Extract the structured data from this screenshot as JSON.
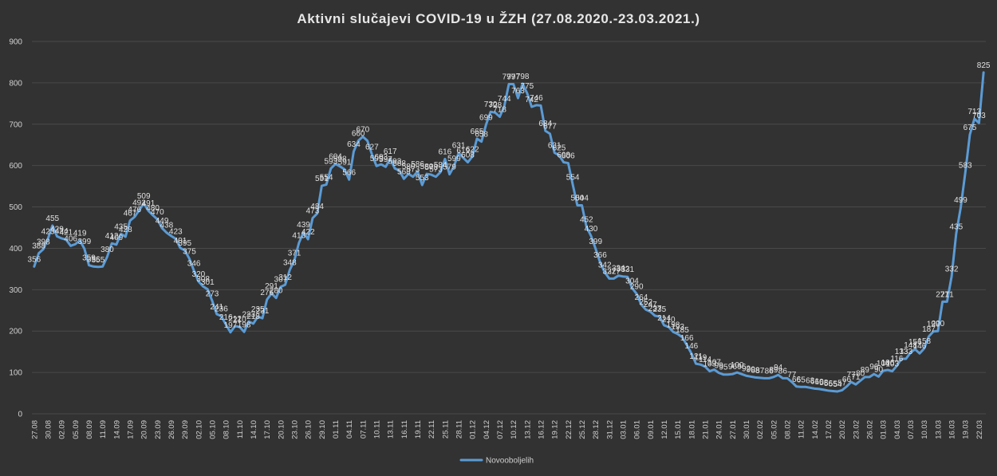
{
  "chart_data": {
    "type": "line",
    "title": "Aktivni slučajevi COVID-19 u ŽZH (27.08.2020.-23.03.2021.)",
    "xlabel": "",
    "ylabel": "",
    "ylim": [
      0,
      900
    ],
    "yticks": [
      0,
      100,
      200,
      300,
      400,
      500,
      600,
      700,
      800,
      900
    ],
    "grid": true,
    "legend_position": "bottom",
    "line_color": "#5b9bd5",
    "x_tick_labels": [
      "27.08",
      "30.08",
      "02.09",
      "05.09",
      "08.09",
      "11.09",
      "14.09",
      "17.09",
      "20.09",
      "23.09",
      "26.09",
      "29.09",
      "02.10",
      "05.10",
      "08.10",
      "11.10",
      "14.10",
      "17.10",
      "20.10",
      "23.10",
      "26.10",
      "29.10",
      "01.11",
      "04.11",
      "07.11",
      "10.11",
      "13.11",
      "16.11",
      "19.11",
      "22.11",
      "25.11",
      "28.11",
      "01.12",
      "04.12",
      "07.12",
      "10.12",
      "13.12",
      "16.12",
      "19.12",
      "22.12",
      "25.12",
      "28.12",
      "31.12",
      "03.01",
      "06.01",
      "09.01",
      "12.01",
      "15.01",
      "18.01",
      "21.01",
      "24.01",
      "27.01",
      "30.01",
      "02.02",
      "05.02",
      "08.02",
      "11.02",
      "14.02",
      "17.02",
      "20.02",
      "23.02",
      "26.02",
      "01.03",
      "04.03",
      "07.03",
      "10.03",
      "13.03",
      "16.03",
      "19.03",
      "22.03"
    ],
    "series": [
      {
        "name": "Novooboljelih",
        "values": [
          356,
          388,
          398,
          423,
          455,
          429,
          424,
          421,
          406,
          410,
          419,
          399,
          359,
          356,
          355,
          356,
          380,
          412,
          409,
          435,
          428,
          467,
          476,
          492,
          509,
          491,
          480,
          470,
          449,
          438,
          430,
          423,
          401,
          395,
          375,
          346,
          320,
          308,
          301,
          273,
          241,
          236,
          216,
          197,
          212,
          210,
          198,
          223,
          218,
          235,
          231,
          276,
          291,
          280,
          307,
          312,
          348,
          371,
          413,
          439,
          422,
          473,
          484,
          551,
          554,
          593,
          604,
          598,
          591,
          566,
          634,
          660,
          670,
          660,
          627,
          599,
          603,
          597,
          617,
          593,
          588,
          568,
          580,
          573,
          586,
          553,
          580,
          578,
          573,
          584,
          616,
          579,
          599,
          631,
          619,
          608,
          622,
          665,
          658,
          699,
          730,
          728,
          718,
          744,
          797,
          797,
          763,
          798,
          775,
          742,
          746,
          745,
          684,
          677,
          631,
          625,
          608,
          606,
          554,
          504,
          504,
          452,
          430,
          399,
          366,
          342,
          327,
          327,
          334,
          332,
          331,
          304,
          290,
          264,
          252,
          247,
          237,
          235,
          214,
          210,
          198,
          193,
          185,
          166,
          146,
          121,
          119,
          114,
          103,
          107,
          99,
          95,
          95,
          96,
          100,
          96,
          92,
          90,
          88,
          87,
          86,
          86,
          89,
          94,
          86,
          86,
          77,
          66,
          65,
          65,
          63,
          61,
          60,
          58,
          56,
          55,
          54,
          57,
          66,
          77,
          71,
          80,
          89,
          89,
          96,
          90,
          104,
          106,
          103,
          116,
          133,
          133,
          148,
          156,
          146,
          158,
          187,
          199,
          200,
          271,
          271,
          332,
          435,
          499,
          583,
          675,
          713,
          703,
          825
        ]
      }
    ],
    "labeled_points": [
      {
        "i": 0,
        "v": 356
      },
      {
        "i": 1,
        "v": 388
      },
      {
        "i": 2,
        "v": 398
      },
      {
        "i": 3,
        "v": 423
      },
      {
        "i": 4,
        "v": 455
      },
      {
        "i": 5,
        "v": 429
      },
      {
        "i": 6,
        "v": 424
      },
      {
        "i": 7,
        "v": 421
      },
      {
        "i": 8,
        "v": 406
      },
      {
        "i": 10,
        "v": 419
      },
      {
        "i": 11,
        "v": 399
      },
      {
        "i": 12,
        "v": 359
      },
      {
        "i": 13,
        "v": 356
      },
      {
        "i": 14,
        "v": 355
      },
      {
        "i": 16,
        "v": 380
      },
      {
        "i": 17,
        "v": 412
      },
      {
        "i": 18,
        "v": 409
      },
      {
        "i": 19,
        "v": 435
      },
      {
        "i": 20,
        "v": 428
      },
      {
        "i": 21,
        "v": 467
      },
      {
        "i": 22,
        "v": 476
      },
      {
        "i": 23,
        "v": 492
      },
      {
        "i": 24,
        "v": 509
      },
      {
        "i": 25,
        "v": 491
      },
      {
        "i": 26,
        "v": 480
      },
      {
        "i": 27,
        "v": 470
      },
      {
        "i": 28,
        "v": 449
      },
      {
        "i": 29,
        "v": 438
      },
      {
        "i": 31,
        "v": 423
      },
      {
        "i": 32,
        "v": 401
      },
      {
        "i": 33,
        "v": 395
      },
      {
        "i": 34,
        "v": 375
      },
      {
        "i": 35,
        "v": 346
      },
      {
        "i": 36,
        "v": 320
      },
      {
        "i": 37,
        "v": 308
      },
      {
        "i": 38,
        "v": 301
      },
      {
        "i": 39,
        "v": 273
      },
      {
        "i": 40,
        "v": 241
      },
      {
        "i": 41,
        "v": 236
      },
      {
        "i": 42,
        "v": 216
      },
      {
        "i": 43,
        "v": 197
      },
      {
        "i": 44,
        "v": 212
      },
      {
        "i": 45,
        "v": 210
      },
      {
        "i": 46,
        "v": 198
      },
      {
        "i": 47,
        "v": 223
      },
      {
        "i": 48,
        "v": 218
      },
      {
        "i": 49,
        "v": 235
      },
      {
        "i": 50,
        "v": 231
      },
      {
        "i": 51,
        "v": 276
      },
      {
        "i": 52,
        "v": 291
      },
      {
        "i": 53,
        "v": 280
      },
      {
        "i": 54,
        "v": 307
      },
      {
        "i": 55,
        "v": 312
      },
      {
        "i": 56,
        "v": 348
      },
      {
        "i": 57,
        "v": 371
      },
      {
        "i": 58,
        "v": 413
      },
      {
        "i": 59,
        "v": 439
      },
      {
        "i": 60,
        "v": 422
      },
      {
        "i": 61,
        "v": 473
      },
      {
        "i": 62,
        "v": 484
      },
      {
        "i": 63,
        "v": 551
      },
      {
        "i": 64,
        "v": 554
      },
      {
        "i": 65,
        "v": 593
      },
      {
        "i": 66,
        "v": 604
      },
      {
        "i": 67,
        "v": 598
      },
      {
        "i": 68,
        "v": 591
      },
      {
        "i": 69,
        "v": 566
      },
      {
        "i": 70,
        "v": 634
      },
      {
        "i": 71,
        "v": 660
      },
      {
        "i": 72,
        "v": 670
      },
      {
        "i": 74,
        "v": 627
      },
      {
        "i": 75,
        "v": 599
      },
      {
        "i": 76,
        "v": 603
      },
      {
        "i": 77,
        "v": 597
      },
      {
        "i": 78,
        "v": 617
      },
      {
        "i": 79,
        "v": 593
      },
      {
        "i": 80,
        "v": 588
      },
      {
        "i": 81,
        "v": 568
      },
      {
        "i": 82,
        "v": 580
      },
      {
        "i": 83,
        "v": 573
      },
      {
        "i": 84,
        "v": 586
      },
      {
        "i": 85,
        "v": 553
      },
      {
        "i": 86,
        "v": 580
      },
      {
        "i": 87,
        "v": 578
      },
      {
        "i": 88,
        "v": 573
      },
      {
        "i": 89,
        "v": 584
      },
      {
        "i": 90,
        "v": 616
      },
      {
        "i": 91,
        "v": 579
      },
      {
        "i": 92,
        "v": 599
      },
      {
        "i": 93,
        "v": 631
      },
      {
        "i": 94,
        "v": 619
      },
      {
        "i": 95,
        "v": 608
      },
      {
        "i": 96,
        "v": 622
      },
      {
        "i": 97,
        "v": 665
      },
      {
        "i": 98,
        "v": 658
      },
      {
        "i": 99,
        "v": 699
      },
      {
        "i": 100,
        "v": 730
      },
      {
        "i": 101,
        "v": 728
      },
      {
        "i": 102,
        "v": 718
      },
      {
        "i": 103,
        "v": 744
      },
      {
        "i": 104,
        "v": 797
      },
      {
        "i": 105,
        "v": 797
      },
      {
        "i": 106,
        "v": 763
      },
      {
        "i": 107,
        "v": 798
      },
      {
        "i": 108,
        "v": 775
      },
      {
        "i": 109,
        "v": 742
      },
      {
        "i": 110,
        "v": 746
      },
      {
        "i": 112,
        "v": 684
      },
      {
        "i": 113,
        "v": 677
      },
      {
        "i": 114,
        "v": 631
      },
      {
        "i": 115,
        "v": 625
      },
      {
        "i": 116,
        "v": 608
      },
      {
        "i": 117,
        "v": 606
      },
      {
        "i": 118,
        "v": 554
      },
      {
        "i": 119,
        "v": 504
      },
      {
        "i": 120,
        "v": 504
      },
      {
        "i": 121,
        "v": 452
      },
      {
        "i": 122,
        "v": 430
      },
      {
        "i": 123,
        "v": 399
      },
      {
        "i": 124,
        "v": 366
      },
      {
        "i": 125,
        "v": 342
      },
      {
        "i": 126,
        "v": 327
      },
      {
        "i": 127,
        "v": 327
      },
      {
        "i": 128,
        "v": 334
      },
      {
        "i": 129,
        "v": 332
      },
      {
        "i": 130,
        "v": 331
      },
      {
        "i": 131,
        "v": 304
      },
      {
        "i": 132,
        "v": 290
      },
      {
        "i": 133,
        "v": 264
      },
      {
        "i": 134,
        "v": 252
      },
      {
        "i": 135,
        "v": 247
      },
      {
        "i": 136,
        "v": 237
      },
      {
        "i": 137,
        "v": 235
      },
      {
        "i": 138,
        "v": 214
      },
      {
        "i": 139,
        "v": 210
      },
      {
        "i": 140,
        "v": 198
      },
      {
        "i": 141,
        "v": 193
      },
      {
        "i": 142,
        "v": 185
      },
      {
        "i": 143,
        "v": 166
      },
      {
        "i": 144,
        "v": 146
      },
      {
        "i": 145,
        "v": 121
      },
      {
        "i": 146,
        "v": 119
      },
      {
        "i": 147,
        "v": 114
      },
      {
        "i": 148,
        "v": 103
      },
      {
        "i": 149,
        "v": 107
      },
      {
        "i": 150,
        "v": 99
      },
      {
        "i": 151,
        "v": 95
      },
      {
        "i": 153,
        "v": 96
      },
      {
        "i": 154,
        "v": 100
      },
      {
        "i": 155,
        "v": 96
      },
      {
        "i": 156,
        "v": 92
      },
      {
        "i": 157,
        "v": 90
      },
      {
        "i": 158,
        "v": 88
      },
      {
        "i": 159,
        "v": 87
      },
      {
        "i": 161,
        "v": 86
      },
      {
        "i": 162,
        "v": 89
      },
      {
        "i": 163,
        "v": 94
      },
      {
        "i": 164,
        "v": 86
      },
      {
        "i": 166,
        "v": 77
      },
      {
        "i": 167,
        "v": 66
      },
      {
        "i": 168,
        "v": 65
      },
      {
        "i": 170,
        "v": 63
      },
      {
        "i": 171,
        "v": 61
      },
      {
        "i": 172,
        "v": 60
      },
      {
        "i": 173,
        "v": 58
      },
      {
        "i": 174,
        "v": 56
      },
      {
        "i": 175,
        "v": 55
      },
      {
        "i": 176,
        "v": 54
      },
      {
        "i": 177,
        "v": 57
      },
      {
        "i": 178,
        "v": 66
      },
      {
        "i": 179,
        "v": 77
      },
      {
        "i": 180,
        "v": 71
      },
      {
        "i": 181,
        "v": 80
      },
      {
        "i": 182,
        "v": 89
      },
      {
        "i": 184,
        "v": 96
      },
      {
        "i": 185,
        "v": 90
      },
      {
        "i": 186,
        "v": 104
      },
      {
        "i": 187,
        "v": 106
      },
      {
        "i": 188,
        "v": 103
      },
      {
        "i": 189,
        "v": 116
      },
      {
        "i": 190,
        "v": 133
      },
      {
        "i": 191,
        "v": 133
      },
      {
        "i": 192,
        "v": 148
      },
      {
        "i": 193,
        "v": 156
      },
      {
        "i": 194,
        "v": 146
      },
      {
        "i": 195,
        "v": 158
      },
      {
        "i": 196,
        "v": 187
      },
      {
        "i": 197,
        "v": 199
      },
      {
        "i": 198,
        "v": 200
      },
      {
        "i": 199,
        "v": 271
      },
      {
        "i": 200,
        "v": 271
      },
      {
        "i": 201,
        "v": 332
      },
      {
        "i": 202,
        "v": 435
      },
      {
        "i": 203,
        "v": 499
      },
      {
        "i": 204,
        "v": 583
      },
      {
        "i": 205,
        "v": 675
      },
      {
        "i": 206,
        "v": 713
      },
      {
        "i": 207,
        "v": 703
      },
      {
        "i": 208,
        "v": 825
      }
    ]
  }
}
